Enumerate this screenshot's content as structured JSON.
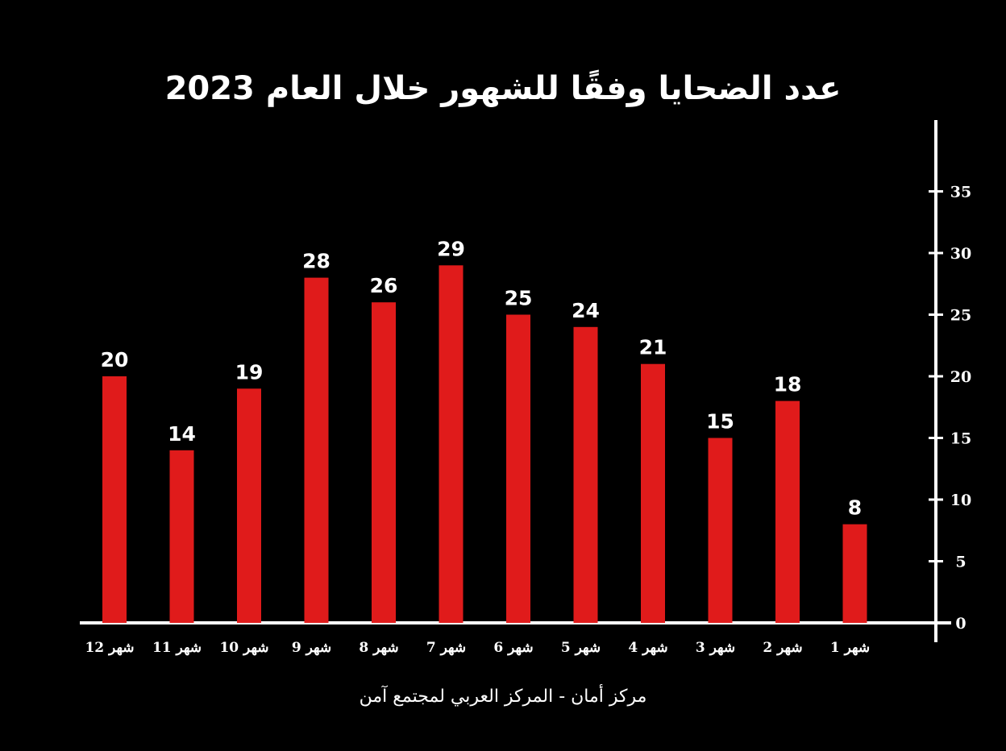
{
  "chart_data": {
    "type": "bar",
    "title": "عدد الضحايا وفقًا للشهور خلال العام 2023",
    "categories": [
      "شهر 12",
      "شهر 11",
      "شهر 10",
      "شهر 9",
      "شهر 8",
      "شهر 7",
      "شهر 6",
      "شهر 5",
      "شهر 4",
      "شهر 3",
      "شهر 2",
      "شهر 1"
    ],
    "values": [
      20,
      14,
      19,
      28,
      26,
      29,
      25,
      24,
      21,
      15,
      18,
      8
    ],
    "data_labels": [
      "20",
      "14",
      "19",
      "28",
      "26",
      "29",
      "25",
      "24",
      "21",
      "15",
      "18",
      "8"
    ],
    "ylim": [
      0,
      40
    ],
    "yticks": [
      0,
      5,
      10,
      15,
      20,
      25,
      30,
      35
    ],
    "ytick_labels": [
      "0",
      "5",
      "10",
      "15",
      "20",
      "25",
      "30",
      "35"
    ],
    "y_axis_side": "right",
    "grid": false,
    "xlabel": "",
    "ylabel": "",
    "colors": {
      "background": "#000000",
      "bar": "#e01b1b",
      "axis": "#ffffff",
      "text": "#ffffff"
    }
  },
  "source": "مركز أمان  - المركز العربي لمجتمع آمن"
}
